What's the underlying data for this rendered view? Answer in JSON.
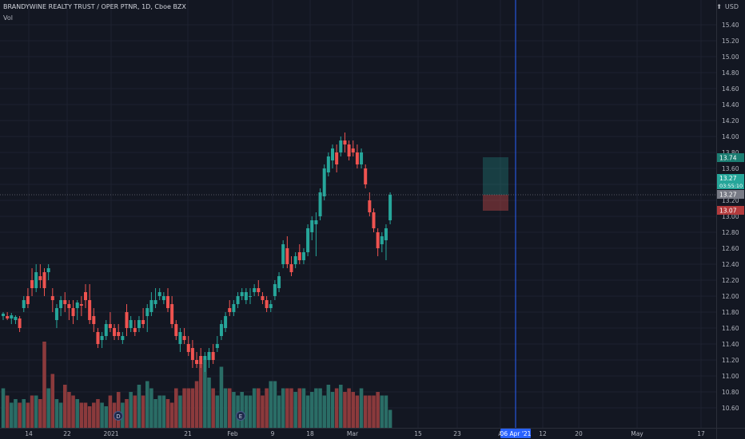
{
  "header": {
    "symbol": "BRANDYWINE REALTY TRUST / OPER PTNR",
    "interval": "1D",
    "exchange": "Cboe BZX",
    "indicator": "Vol",
    "currency": "USD",
    "currency_icon": "bell-icon"
  },
  "colors": {
    "background": "#131722",
    "grid": "#1e2230",
    "up": "#26a69a",
    "down": "#ef5350",
    "up_volume": "#2a6d66",
    "down_volume": "#8b3a3c",
    "crosshair": "#2962ff",
    "axis_text": "#b2b5be"
  },
  "chart_data": {
    "type": "candlestick",
    "y_axis": {
      "ticks": [
        "15.40",
        "15.20",
        "15.00",
        "14.80",
        "14.60",
        "14.40",
        "14.20",
        "14.00",
        "13.80",
        "13.60",
        "13.40",
        "13.20",
        "13.00",
        "12.80",
        "12.60",
        "12.40",
        "12.20",
        "12.00",
        "11.80",
        "11.60",
        "11.40",
        "11.20",
        "11.00",
        "10.80",
        "10.60"
      ],
      "range": [
        10.5,
        15.5
      ]
    },
    "x_axis": {
      "ticks": [
        "14",
        "22",
        "2021",
        "21",
        "Feb",
        "9",
        "18",
        "Mar",
        "15",
        "23",
        "A",
        "12",
        "20",
        "May",
        "17"
      ],
      "crosshair_label": "06 Apr '21"
    },
    "price_labels": [
      {
        "name": "target",
        "value": "13.74"
      },
      {
        "name": "last",
        "value": "13.27"
      },
      {
        "name": "countdown",
        "value": "03:55:10"
      },
      {
        "name": "crosshair",
        "value": "13.27"
      },
      {
        "name": "stop",
        "value": "13.07"
      }
    ],
    "events": [
      "D",
      "E"
    ],
    "position": {
      "entry": 13.27,
      "target": 13.74,
      "stop": 13.07
    },
    "candles": [
      [
        11.75,
        11.8,
        11.7,
        11.78
      ],
      [
        11.75,
        11.8,
        11.7,
        11.72
      ],
      [
        11.72,
        11.79,
        11.65,
        11.76
      ],
      [
        11.7,
        11.76,
        11.65,
        11.74
      ],
      [
        11.72,
        11.75,
        11.55,
        11.6
      ],
      [
        11.85,
        12.0,
        11.8,
        11.95
      ],
      [
        12.0,
        12.1,
        11.85,
        11.9
      ],
      [
        12.2,
        12.35,
        12.0,
        12.1
      ],
      [
        12.1,
        12.4,
        12.05,
        12.3
      ],
      [
        12.25,
        12.4,
        12.1,
        12.2
      ],
      [
        12.3,
        12.35,
        12.0,
        12.1
      ],
      [
        12.3,
        12.4,
        12.2,
        12.35
      ],
      [
        12.0,
        12.1,
        11.8,
        11.95
      ],
      [
        11.7,
        11.9,
        11.6,
        11.85
      ],
      [
        11.85,
        12.0,
        11.75,
        11.95
      ],
      [
        11.95,
        12.05,
        11.8,
        11.9
      ],
      [
        11.9,
        11.95,
        11.7,
        11.85
      ],
      [
        11.85,
        11.95,
        11.65,
        11.75
      ],
      [
        11.85,
        11.95,
        11.7,
        11.92
      ],
      [
        11.9,
        12.0,
        11.75,
        11.88
      ],
      [
        12.05,
        12.15,
        11.85,
        11.95
      ],
      [
        11.95,
        12.15,
        11.65,
        11.7
      ],
      [
        11.75,
        11.85,
        11.55,
        11.65
      ],
      [
        11.55,
        11.6,
        11.35,
        11.4
      ],
      [
        11.45,
        11.55,
        11.35,
        11.5
      ],
      [
        11.5,
        11.7,
        11.45,
        11.65
      ],
      [
        11.65,
        11.8,
        11.55,
        11.6
      ],
      [
        11.6,
        11.65,
        11.45,
        11.5
      ],
      [
        11.55,
        11.65,
        11.45,
        11.5
      ],
      [
        11.45,
        11.55,
        11.4,
        11.5
      ],
      [
        11.8,
        11.9,
        11.5,
        11.6
      ],
      [
        11.6,
        11.75,
        11.55,
        11.7
      ],
      [
        11.6,
        11.7,
        11.5,
        11.55
      ],
      [
        11.6,
        11.75,
        11.55,
        11.7
      ],
      [
        11.7,
        11.85,
        11.6,
        11.65
      ],
      [
        11.75,
        11.9,
        11.55,
        11.85
      ],
      [
        11.8,
        12.05,
        11.75,
        11.95
      ],
      [
        11.9,
        12.1,
        11.85,
        11.95
      ],
      [
        12.0,
        12.1,
        11.95,
        12.05
      ],
      [
        11.95,
        12.05,
        11.9,
        12.0
      ],
      [
        12.0,
        12.1,
        11.8,
        11.85
      ],
      [
        11.9,
        12.0,
        11.6,
        11.65
      ],
      [
        11.65,
        11.7,
        11.45,
        11.5
      ],
      [
        11.4,
        11.6,
        11.3,
        11.55
      ],
      [
        11.5,
        11.6,
        11.4,
        11.45
      ],
      [
        11.4,
        11.5,
        11.25,
        11.3
      ],
      [
        11.35,
        11.45,
        11.1,
        11.2
      ],
      [
        11.2,
        11.3,
        11.1,
        11.15
      ],
      [
        11.25,
        11.35,
        11.1,
        11.15
      ],
      [
        11.2,
        11.3,
        11.05,
        11.25
      ],
      [
        11.2,
        11.35,
        11.1,
        11.3
      ],
      [
        11.3,
        11.4,
        11.15,
        11.2
      ],
      [
        11.35,
        11.5,
        11.3,
        11.4
      ],
      [
        11.5,
        11.7,
        11.45,
        11.65
      ],
      [
        11.6,
        11.8,
        11.55,
        11.75
      ],
      [
        11.85,
        11.95,
        11.75,
        11.8
      ],
      [
        11.8,
        11.95,
        11.75,
        11.9
      ],
      [
        11.9,
        12.05,
        11.85,
        12.0
      ],
      [
        12.0,
        12.1,
        11.95,
        12.05
      ],
      [
        11.95,
        12.1,
        11.9,
        12.05
      ],
      [
        12.0,
        12.1,
        11.9,
        12.0
      ],
      [
        12.05,
        12.15,
        12.0,
        12.1
      ],
      [
        12.1,
        12.2,
        12.0,
        12.05
      ],
      [
        12.0,
        12.05,
        11.9,
        11.95
      ],
      [
        11.95,
        12.0,
        11.8,
        11.85
      ],
      [
        11.85,
        11.95,
        11.8,
        11.9
      ],
      [
        12.0,
        12.2,
        11.95,
        12.15
      ],
      [
        12.1,
        12.3,
        12.05,
        12.25
      ],
      [
        12.4,
        12.7,
        12.35,
        12.65
      ],
      [
        12.6,
        12.75,
        12.35,
        12.4
      ],
      [
        12.4,
        12.5,
        12.25,
        12.3
      ],
      [
        12.4,
        12.55,
        12.35,
        12.5
      ],
      [
        12.55,
        12.65,
        12.4,
        12.45
      ],
      [
        12.45,
        12.6,
        12.4,
        12.55
      ],
      [
        12.55,
        12.9,
        12.5,
        12.85
      ],
      [
        12.8,
        13.0,
        12.7,
        12.95
      ],
      [
        12.9,
        13.05,
        12.5,
        12.95
      ],
      [
        13.0,
        13.35,
        12.95,
        13.3
      ],
      [
        13.25,
        13.65,
        13.2,
        13.6
      ],
      [
        13.55,
        13.8,
        13.5,
        13.75
      ],
      [
        13.7,
        13.9,
        13.6,
        13.85
      ],
      [
        13.8,
        13.9,
        13.55,
        13.65
      ],
      [
        13.8,
        14.0,
        13.75,
        13.95
      ],
      [
        13.95,
        14.05,
        13.8,
        13.9
      ],
      [
        13.9,
        13.95,
        13.7,
        13.75
      ],
      [
        13.85,
        13.95,
        13.75,
        13.8
      ],
      [
        13.8,
        13.9,
        13.6,
        13.65
      ],
      [
        13.65,
        13.85,
        13.6,
        13.8
      ],
      [
        13.6,
        13.65,
        13.35,
        13.4
      ],
      [
        13.2,
        13.3,
        13.0,
        13.05
      ],
      [
        13.05,
        13.1,
        12.8,
        12.85
      ],
      [
        12.8,
        12.85,
        12.5,
        12.6
      ],
      [
        12.65,
        12.8,
        12.55,
        12.75
      ],
      [
        12.7,
        12.9,
        12.45,
        12.85
      ],
      [
        12.95,
        13.3,
        12.9,
        13.27
      ]
    ],
    "volume": [
      0.55,
      0.45,
      0.35,
      0.4,
      0.35,
      0.4,
      0.35,
      0.45,
      0.45,
      0.4,
      1.2,
      0.55,
      0.75,
      0.4,
      0.35,
      0.6,
      0.5,
      0.45,
      0.4,
      0.35,
      0.35,
      0.3,
      0.35,
      0.4,
      0.35,
      0.3,
      0.45,
      0.35,
      0.5,
      0.35,
      0.4,
      0.5,
      0.45,
      0.6,
      0.45,
      0.65,
      0.55,
      0.4,
      0.45,
      0.45,
      0.4,
      0.35,
      0.55,
      0.45,
      0.55,
      0.55,
      0.55,
      0.65,
      0.9,
      0.95,
      0.7,
      0.55,
      0.45,
      0.85,
      0.55,
      0.55,
      0.5,
      0.45,
      0.5,
      0.45,
      0.45,
      0.55,
      0.55,
      0.45,
      0.55,
      0.65,
      0.65,
      0.45,
      0.55,
      0.55,
      0.55,
      0.5,
      0.55,
      0.55,
      0.45,
      0.5,
      0.55,
      0.55,
      0.45,
      0.6,
      0.5,
      0.55,
      0.6,
      0.5,
      0.55,
      0.5,
      0.45,
      0.55,
      0.45,
      0.45,
      0.45,
      0.5,
      0.45,
      0.45,
      0.25
    ]
  }
}
